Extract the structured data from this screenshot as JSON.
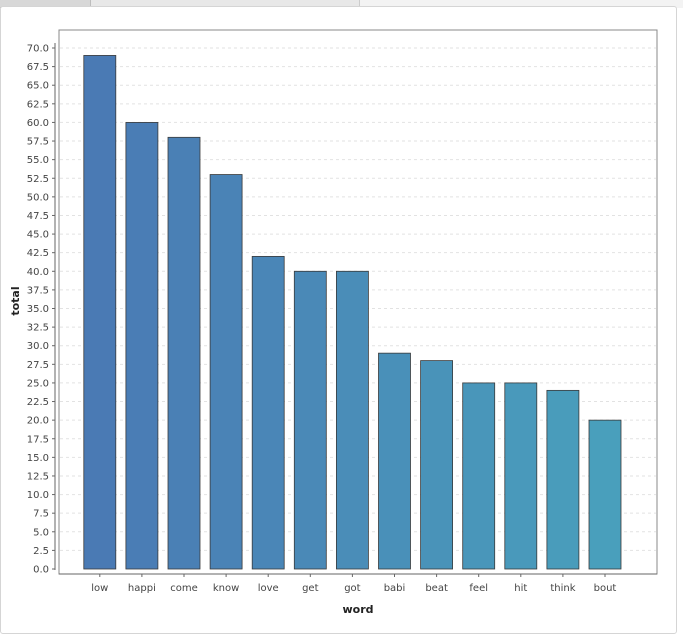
{
  "chart_data": {
    "type": "bar",
    "title": "",
    "xlabel": "word",
    "ylabel": "total",
    "categories": [
      "low",
      "happi",
      "come",
      "know",
      "love",
      "get",
      "got",
      "babi",
      "beat",
      "feel",
      "hit",
      "think",
      "bout"
    ],
    "values": [
      69,
      60,
      58,
      53,
      42,
      40,
      40,
      29,
      28,
      25,
      25,
      24,
      20
    ],
    "ylim": [
      0,
      70
    ],
    "ytick_step": 2.5,
    "grid": true,
    "legend": "none"
  },
  "colors": {
    "bar_start": "#4a7ab4",
    "bar_end": "#499fbc",
    "bar_outline": "#3a3a3a",
    "grid": "#e2e2e2",
    "axis": "#888888"
  }
}
